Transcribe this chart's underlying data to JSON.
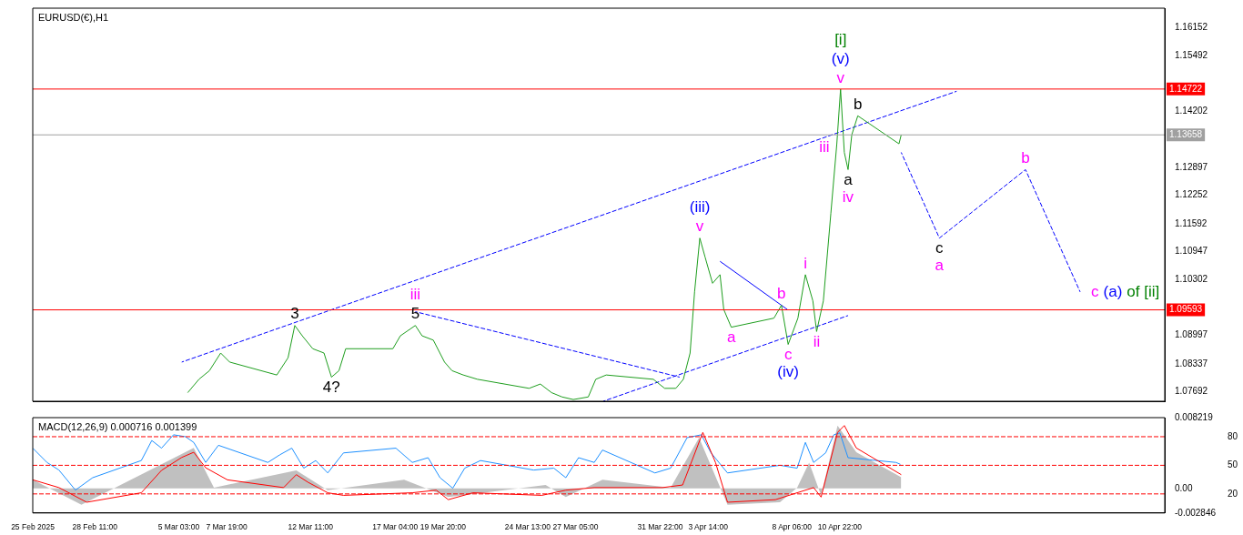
{
  "chart_data": [
    {
      "type": "line",
      "title": "EURUSD(€),H1",
      "marker": "none",
      "tick_labels": "y",
      "xlim": [
        "2025-02-25",
        "2025-04-29"
      ],
      "ylim": [
        1.0747,
        1.166
      ],
      "yticks": [
        1.16152,
        1.15492,
        1.14202,
        1.12897,
        1.12252,
        1.11592,
        1.10947,
        1.10302,
        1.08997,
        1.08337,
        1.07692
      ],
      "series": [
        {
          "type": "line",
          "color": "#1e9e1e",
          "x": [
            "2025-03-05T15:00",
            "2025-03-06T06:00",
            "2025-03-06T20:00",
            "2025-03-07T11:00",
            "2025-03-07T23:00",
            "2025-03-10T14:00",
            "2025-03-11T05:00",
            "2025-03-11T14:00",
            "2025-03-12T00:00",
            "2025-03-12T14:00",
            "2025-03-13T05:00",
            "2025-03-13T15:00",
            "2025-03-14T01:00",
            "2025-03-14T10:00",
            "2025-03-17T01:00",
            "2025-03-17T11:00",
            "2025-03-18T07:00",
            "2025-03-18T16:00",
            "2025-03-19T07:00",
            "2025-03-19T22:00",
            "2025-03-20T08:00",
            "2025-03-20T23:00",
            "2025-03-21T18:00",
            "2025-03-24T15:00",
            "2025-03-25T06:00",
            "2025-03-25T21:00",
            "2025-03-26T11:00",
            "2025-03-27T02:00",
            "2025-03-27T22:00",
            "2025-03-28T08:00",
            "2025-03-28T22:00",
            "2025-03-31T13:00",
            "2025-04-01T04:00",
            "2025-04-01T19:00",
            "2025-04-02T05:00",
            "2025-04-02T14:00",
            "2025-04-02T20:00",
            "2025-04-03T03:00",
            "2025-04-03T10:00",
            "2025-04-03T20:00",
            "2025-04-04T06:00",
            "2025-04-04T11:00",
            "2025-04-04T21:00",
            "2025-04-07T06:00",
            "2025-04-07T16:00",
            "2025-04-08T01:00",
            "2025-04-08T14:00",
            "2025-04-09T00:00",
            "2025-04-09T10:00",
            "2025-04-09T15:00",
            "2025-04-10T00:00",
            "2025-04-10T10:00",
            "2025-04-10T18:00",
            "2025-04-10T23:00",
            "2025-04-11T04:00",
            "2025-04-11T09:00",
            "2025-04-11T14:00",
            "2025-04-11T22:00",
            "2025-04-14T05:00",
            "2025-04-14T08:00"
          ],
          "values": [
            1.0767,
            1.0798,
            1.0818,
            1.0859,
            1.0838,
            1.0808,
            1.0848,
            1.0923,
            1.0899,
            1.0869,
            1.0859,
            1.0803,
            1.0818,
            1.0869,
            1.0869,
            1.0899,
            1.0923,
            1.0899,
            1.0889,
            1.0838,
            1.0818,
            1.0808,
            1.0798,
            1.0777,
            1.0787,
            1.0767,
            1.0757,
            1.0751,
            1.0757,
            1.0798,
            1.0808,
            1.0798,
            1.0777,
            1.0777,
            1.0798,
            1.0859,
            1.1001,
            1.1126,
            1.1082,
            1.1021,
            1.1041,
            1.096,
            1.0919,
            1.094,
            1.097,
            1.0879,
            1.094,
            1.1041,
            1.098,
            1.0909,
            1.098,
            1.1183,
            1.1345,
            1.1472,
            1.1325,
            1.1285,
            1.1366,
            1.141,
            1.1345,
            1.1366
          ]
        },
        {
          "type": "line",
          "color": "#0000ff",
          "line_style": "dashed",
          "x": [
            "2025-04-14T08:00",
            "2025-04-16T11:00",
            "2025-04-21T06:00",
            "2025-04-24T07:00"
          ],
          "values": [
            1.1325,
            1.1126,
            1.1285,
            1.1001
          ]
        },
        {
          "type": "line",
          "color": "#0000ff",
          "line_style": "dashed",
          "x": [
            "2025-03-05T07:00",
            "2025-04-17T10:00"
          ],
          "values": [
            1.0838,
            1.1467
          ]
        },
        {
          "type": "line",
          "color": "#0000ff",
          "line_style": "dashed",
          "x": [
            "2025-03-28T18:00",
            "2025-04-11T09:00"
          ],
          "values": [
            1.0747,
            1.0946
          ]
        },
        {
          "type": "line",
          "color": "#0000ff",
          "line_style": "dashed",
          "x": [
            "2025-03-18T07:00",
            "2025-04-02T00:00"
          ],
          "values": [
            1.0955,
            1.0803
          ]
        },
        {
          "type": "line",
          "color": "#0000ff",
          "x": [
            "2025-04-04T06:00",
            "2025-04-08T00:00"
          ],
          "values": [
            1.1072,
            1.096
          ]
        }
      ],
      "ref_lines": [
        {
          "axis": "y",
          "value": 1.14722,
          "label": "1.14722",
          "color": "#ff0000"
        },
        {
          "axis": "y",
          "value": 1.13658,
          "label": "1.13658",
          "color": "#a0a0a0"
        },
        {
          "axis": "y",
          "value": 1.09593,
          "label": "1.09593",
          "color": "#ff0000"
        }
      ],
      "annotations": [
        {
          "text": "3",
          "x": "2025-03-11T14:00",
          "y": 1.0923
        },
        {
          "text": "4?",
          "x": "2025-03-13T15:00",
          "y": 1.0803
        },
        {
          "text": "5",
          "x": "2025-03-18T07:00",
          "y": 1.0923
        },
        {
          "text": "iii",
          "x": "2025-03-18T07:00",
          "y": 1.0923
        },
        {
          "text": "v",
          "x": "2025-04-03T03:00",
          "y": 1.1126
        },
        {
          "text": "(iii)",
          "x": "2025-04-03T03:00",
          "y": 1.1126
        },
        {
          "text": "a",
          "x": "2025-04-04T21:00",
          "y": 1.0919
        },
        {
          "text": "b",
          "x": "2025-04-07T16:00",
          "y": 1.097
        },
        {
          "text": "c",
          "x": "2025-04-08T01:00",
          "y": 1.0879
        },
        {
          "text": "(iv)",
          "x": "2025-04-08T01:00",
          "y": 1.0879
        },
        {
          "text": "i",
          "x": "2025-04-09T00:00",
          "y": 1.1041
        },
        {
          "text": "ii",
          "x": "2025-04-09T15:00",
          "y": 1.0909
        },
        {
          "text": "iii",
          "x": "2025-04-10T18:00",
          "y": 1.1345
        },
        {
          "text": "v",
          "x": "2025-04-10T23:00",
          "y": 1.1472
        },
        {
          "text": "(v)",
          "x": "2025-04-10T23:00",
          "y": 1.1472
        },
        {
          "text": "[i]",
          "x": "2025-04-10T23:00",
          "y": 1.1472
        },
        {
          "text": "a",
          "x": "2025-04-11T09:00",
          "y": 1.1285
        },
        {
          "text": "iv",
          "x": "2025-04-11T09:00",
          "y": 1.1285
        },
        {
          "text": "b",
          "x": "2025-04-11T22:00",
          "y": 1.141
        },
        {
          "text": "c",
          "x": "2025-04-16T11:00",
          "y": 1.1126
        },
        {
          "text": "a",
          "x": "2025-04-16T11:00",
          "y": 1.1126
        },
        {
          "text": "b",
          "x": "2025-04-21T06:00",
          "y": 1.1285
        },
        {
          "text": "c",
          "x": "2025-04-24T07:00",
          "y": 1.1001
        },
        {
          "text": "(a)",
          "x": "2025-04-24T07:00",
          "y": 1.1001
        },
        {
          "text": "of [ii]",
          "x": "2025-04-24T07:00",
          "y": 1.1001
        }
      ]
    },
    {
      "type": "line",
      "title": "MACD(12,26,9) 0.000716 0.001399",
      "marker": "none",
      "xlim": [
        "2025-02-25",
        "2025-04-29"
      ],
      "xticks": [
        {
          "value": "2025-02-25",
          "label": "25 Feb 2025"
        },
        {
          "value": "2025-02-28T11:00",
          "label": "28 Feb 11:00"
        },
        {
          "value": "2025-03-05T03:00",
          "label": "5 Mar 03:00"
        },
        {
          "value": "2025-03-07T19:00",
          "label": "7 Mar 19:00"
        },
        {
          "value": "2025-03-12T11:00",
          "label": "12 Mar 11:00"
        },
        {
          "value": "2025-03-17T04:00",
          "label": "17 Mar 04:00"
        },
        {
          "value": "2025-03-19T20:00",
          "label": "19 Mar 20:00"
        },
        {
          "value": "2025-03-24T13:00",
          "label": "24 Mar 13:00"
        },
        {
          "value": "2025-03-27T05:00",
          "label": "27 Mar 05:00"
        },
        {
          "value": "2025-03-31T22:00",
          "label": "31 Mar 22:00"
        },
        {
          "value": "2025-04-03T14:00",
          "label": "3 Apr 14:00"
        },
        {
          "value": "2025-04-08T06:00",
          "label": "8 Apr 06:00"
        },
        {
          "value": "2025-04-10T22:00",
          "label": "10 Apr 22:00"
        }
      ],
      "ylim": [
        -0.002846,
        0.008219
      ],
      "yticks": [
        0.008219,
        {
          "value": 0,
          "label": "0.00"
        },
        -0.002846
      ],
      "y2lim": [
        0,
        100
      ],
      "y2ticks": [
        80,
        50,
        20
      ],
      "series": [
        {
          "type": "area",
          "color": "#c0c0c0",
          "x": [
            "2025-02-25T00:00",
            "2025-02-27T17:00",
            "2025-03-05T23:00",
            "2025-03-07T02:00",
            "2025-03-11T16:00",
            "2025-03-13T10:00",
            "2025-03-17T16:00",
            "2025-03-20T03:00",
            "2025-03-25T13:00",
            "2025-03-26T16:00",
            "2025-03-28T17:00",
            "2025-04-01T12:00",
            "2025-04-03T02:00",
            "2025-04-04T16:00",
            "2025-04-07T14:00",
            "2025-04-08T13:00",
            "2025-04-09T05:00",
            "2025-04-09T21:00",
            "2025-04-10T19:00",
            "2025-04-11T20:00",
            "2025-04-14T08:00"
          ],
          "values": [
            0.001,
            -0.0019,
            0.0047,
            0.0001,
            0.0021,
            -0.0002,
            0.001,
            -0.001,
            0.0004,
            -0.001,
            0.001,
            0.0001,
            0.0059,
            -0.0019,
            -0.0016,
            0.0001,
            0.003,
            -0.0008,
            0.0073,
            0.0042,
            0.0013
          ]
        },
        {
          "type": "line",
          "color": "#ff0000",
          "x": [
            "2025-02-25T00:00",
            "2025-02-26T11:00",
            "2025-02-28T00:00",
            "2025-03-03T01:00",
            "2025-03-04T04:00",
            "2025-03-05T07:00",
            "2025-03-05T23:00",
            "2025-03-06T15:00",
            "2025-03-07T20:00",
            "2025-03-10T23:00",
            "2025-03-11T16:00",
            "2025-03-12T08:00",
            "2025-03-13T10:00",
            "2025-03-14T07:00",
            "2025-03-18T03:00",
            "2025-03-19T11:00",
            "2025-03-20T03:00",
            "2025-03-21T12:00",
            "2025-03-25T08:00",
            "2025-03-26T16:00",
            "2025-03-28T06:00",
            "2025-04-01T01:00",
            "2025-04-02T04:00",
            "2025-04-03T07:00",
            "2025-04-04T00:00",
            "2025-04-04T16:00",
            "2025-04-07T08:00",
            "2025-04-08T13:00",
            "2025-04-09T11:00",
            "2025-04-09T21:00",
            "2025-04-10T19:00",
            "2025-04-11T04:00",
            "2025-04-11T20:00",
            "2025-04-14T08:00"
          ],
          "values": [
            0.001,
            0.0001,
            -0.0016,
            -0.0005,
            0.0021,
            0.0036,
            0.0042,
            0.0024,
            0.001,
            0.0001,
            0.0016,
            0.0007,
            -0.0005,
            -0.0008,
            -0.0005,
            -0.0002,
            -0.0013,
            -0.0005,
            -0.0008,
            -0.0002,
            0.0001,
            0.0001,
            0.0004,
            0.0065,
            0.003,
            -0.0016,
            -0.0013,
            -0.0005,
            0.0001,
            -0.001,
            0.0065,
            0.0073,
            0.0047,
            0.0016
          ]
        },
        {
          "type": "line",
          "color": "#1e90ff",
          "axis": "y2",
          "x": [
            "2025-02-25T00:00",
            "2025-02-25T19:00",
            "2025-02-26T11:00",
            "2025-02-27T09:00",
            "2025-02-28T08:00",
            "2025-03-03T01:00",
            "2025-03-03T15:00",
            "2025-03-04T04:00",
            "2025-03-04T20:00",
            "2025-03-05T12:00",
            "2025-03-05T23:00",
            "2025-03-06T15:00",
            "2025-03-07T08:00",
            "2025-03-10T02:00",
            "2025-03-10T18:00",
            "2025-03-11T10:00",
            "2025-03-12T02:00",
            "2025-03-12T18:00",
            "2025-03-13T10:00",
            "2025-03-14T07:00",
            "2025-03-17T05:00",
            "2025-03-18T03:00",
            "2025-03-19T00:00",
            "2025-03-19T16:00",
            "2025-03-20T09:00",
            "2025-03-21T01:00",
            "2025-03-21T22:00",
            "2025-03-24T21:00",
            "2025-03-26T00:00",
            "2025-03-26T16:00",
            "2025-03-27T09:00",
            "2025-03-28T06:00",
            "2025-03-28T17:00",
            "2025-03-31T15:00",
            "2025-04-01T12:00",
            "2025-04-02T10:00",
            "2025-04-03T05:00",
            "2025-04-03T18:00",
            "2025-04-04T16:00",
            "2025-04-07T14:00",
            "2025-04-08T13:00",
            "2025-04-09T00:00",
            "2025-04-09T11:00",
            "2025-04-10T03:00",
            "2025-04-10T14:00",
            "2025-04-10T22:00",
            "2025-04-11T09:00",
            "2025-04-14T01:00",
            "2025-04-14T07:00"
          ],
          "values": [
            68,
            53,
            45,
            24,
            37,
            55,
            76,
            68,
            82,
            80,
            74,
            53,
            71,
            53,
            61,
            68,
            47,
            55,
            42,
            63,
            68,
            53,
            58,
            37,
            26,
            47,
            55,
            45,
            47,
            37,
            58,
            53,
            66,
            42,
            47,
            79,
            82,
            63,
            42,
            50,
            47,
            74,
            53,
            63,
            82,
            84,
            58,
            53,
            51
          ]
        }
      ],
      "ref_lines": [
        {
          "axis": "y2",
          "value": 80,
          "color": "#ff0000",
          "line_style": "dashed"
        },
        {
          "axis": "y2",
          "value": 50,
          "color": "#ff0000",
          "line_style": "dashed"
        },
        {
          "axis": "y2",
          "value": 20,
          "color": "#ff0000",
          "line_style": "dashed"
        }
      ]
    }
  ]
}
